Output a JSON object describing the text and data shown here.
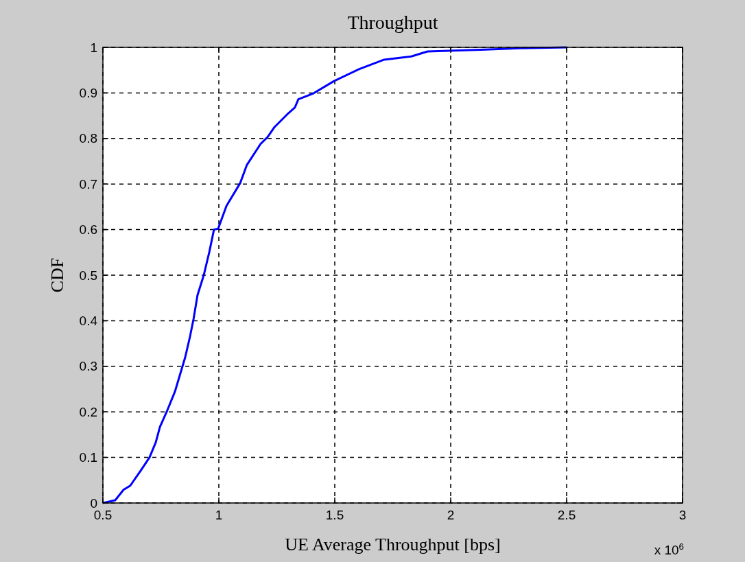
{
  "chart_data": {
    "type": "line",
    "title": "Throughput",
    "xlabel": "UE Average Throughput [bps]",
    "ylabel": "CDF",
    "annotations": [
      "x 10$^{6}$"
    ],
    "xlim": [
      0.5,
      3
    ],
    "xticks": [
      0.5,
      1,
      1.5,
      2,
      2.5,
      3
    ],
    "ylim": [
      0,
      1
    ],
    "yticks": [
      0,
      0.1,
      0.2,
      0.3,
      0.4,
      0.5,
      0.6,
      0.7,
      0.8,
      0.9,
      1
    ],
    "grid": true,
    "series": [
      {
        "color": "#0000ff",
        "x": [
          0.5,
          0.553,
          0.589,
          0.618,
          0.663,
          0.701,
          0.728,
          0.746,
          0.775,
          0.811,
          0.831,
          0.855,
          0.876,
          0.891,
          0.908,
          0.935,
          0.959,
          0.979,
          0.997,
          1.033,
          1.092,
          1.121,
          1.18,
          1.21,
          1.24,
          1.299,
          1.328,
          1.343,
          1.408,
          1.497,
          1.604,
          1.713,
          1.83,
          1.9,
          2.15,
          2.3,
          2.5
        ],
        "values": [
          0,
          0.006,
          0.029,
          0.038,
          0.071,
          0.1,
          0.133,
          0.167,
          0.2,
          0.245,
          0.279,
          0.32,
          0.366,
          0.404,
          0.456,
          0.5,
          0.551,
          0.6,
          0.602,
          0.652,
          0.702,
          0.742,
          0.788,
          0.803,
          0.825,
          0.855,
          0.868,
          0.886,
          0.899,
          0.926,
          0.952,
          0.973,
          0.98,
          0.991,
          0.995,
          0.998,
          1.0
        ]
      }
    ]
  }
}
